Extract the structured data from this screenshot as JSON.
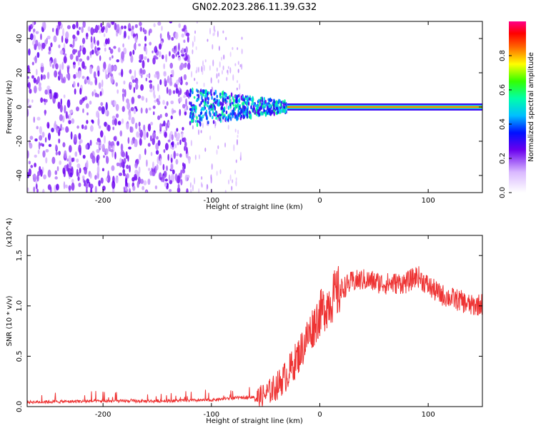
{
  "figure": {
    "title": "GN02.2023.286.11.39.G32"
  },
  "chart_data": [
    {
      "type": "heatmap",
      "xlabel": "Height of straight line (km)",
      "ylabel": "Frequency (Hz)",
      "xlim": [
        -270,
        150
      ],
      "ylim": [
        -50,
        50
      ],
      "x_ticks": [
        -200,
        -100,
        0,
        100
      ],
      "x_tick_labels": [
        "-200",
        "-100",
        "0",
        "100"
      ],
      "y_ticks": [
        -40,
        -20,
        0,
        20,
        40
      ],
      "y_tick_labels": [
        "-40",
        "-20",
        "0",
        "20",
        "40"
      ],
      "colorbar": {
        "label": "Normalized spectral amplitude",
        "range": [
          0,
          1
        ],
        "ticks": [
          0.0,
          0.2,
          0.4,
          0.6,
          0.8
        ],
        "tick_labels": [
          "0.0",
          "0.2",
          "0.4",
          "0.6",
          "0.8"
        ],
        "colors": [
          "#ffffff",
          "#7700ee",
          "#0000ff",
          "#00c8ff",
          "#00ff60",
          "#ffff00",
          "#ff5500",
          "#ff0000",
          "#ff0080"
        ]
      },
      "regions": [
        {
          "name": "noise",
          "x_range": [
            -270,
            -120
          ],
          "freq_range": [
            -50,
            50
          ],
          "amplitude": 0.1
        },
        {
          "name": "transition",
          "x_range": [
            -120,
            -30
          ],
          "freq_range": [
            -10,
            8
          ],
          "amplitude": 0.35
        },
        {
          "name": "tone",
          "x_range": [
            -30,
            150
          ],
          "frequency": 0,
          "amplitude": 0.9
        }
      ],
      "grid": false
    },
    {
      "type": "line",
      "xlabel": "Height of straight line (km)",
      "ylabel": "SNR (10 * v/v)",
      "y_multiplier_label": "(x10^4)",
      "xlim": [
        -270,
        150
      ],
      "ylim": [
        0,
        1.7
      ],
      "x_ticks": [
        -200,
        -100,
        0,
        100
      ],
      "x_tick_labels": [
        "-200",
        "-100",
        "0",
        "100"
      ],
      "y_ticks": [
        0.0,
        0.5,
        1.0,
        1.5
      ],
      "y_tick_labels": [
        "0.0",
        "0.5",
        "1.0",
        "1.5"
      ],
      "color": "#ee3333",
      "x": [
        -270,
        -200,
        -150,
        -100,
        -80,
        -60,
        -50,
        -40,
        -30,
        -20,
        -10,
        0,
        10,
        20,
        30,
        40,
        60,
        80,
        90,
        100,
        110,
        120,
        130,
        140,
        150
      ],
      "values": [
        0.03,
        0.04,
        0.04,
        0.05,
        0.07,
        0.08,
        0.12,
        0.2,
        0.32,
        0.5,
        0.72,
        0.92,
        1.06,
        1.17,
        1.24,
        1.26,
        1.22,
        1.23,
        1.3,
        1.2,
        1.12,
        1.08,
        1.05,
        1.0,
        1.02
      ],
      "grid": false
    }
  ]
}
